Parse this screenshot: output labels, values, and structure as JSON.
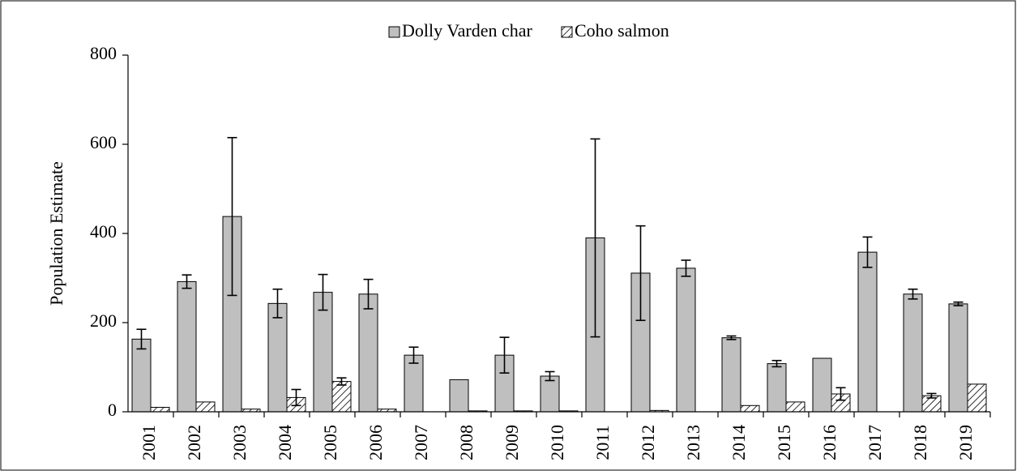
{
  "chart_data": {
    "type": "bar",
    "y_label": "Population Estimate",
    "categories": [
      "2001",
      "2002",
      "2003",
      "2004",
      "2005",
      "2006",
      "2007",
      "2008",
      "2009",
      "2010",
      "2011",
      "2012",
      "2013",
      "2014",
      "2015",
      "2016",
      "2017",
      "2018",
      "2019"
    ],
    "series": [
      {
        "name": "Dolly Varden char",
        "color": "#bfbfbf",
        "values": [
          163,
          292,
          438,
          243,
          268,
          264,
          127,
          72,
          127,
          80,
          390,
          311,
          322,
          166,
          108,
          120,
          358,
          264,
          242
        ],
        "errors": [
          22,
          15,
          177,
          32,
          40,
          33,
          18,
          null,
          40,
          10,
          222,
          106,
          18,
          4,
          7,
          null,
          34,
          11,
          4
        ]
      },
      {
        "name": "Coho salmon",
        "color": "#ffffff",
        "values": [
          10,
          22,
          6,
          32,
          68,
          6,
          0,
          2,
          2,
          2,
          0,
          3,
          0,
          14,
          22,
          40,
          0,
          36,
          62
        ],
        "errors": [
          null,
          null,
          null,
          18,
          8,
          null,
          null,
          null,
          null,
          null,
          null,
          null,
          null,
          null,
          null,
          14,
          null,
          5,
          null
        ]
      }
    ],
    "ylim": [
      0,
      800
    ],
    "yticks": [
      0,
      200,
      400,
      600,
      800
    ],
    "legend": "top"
  }
}
